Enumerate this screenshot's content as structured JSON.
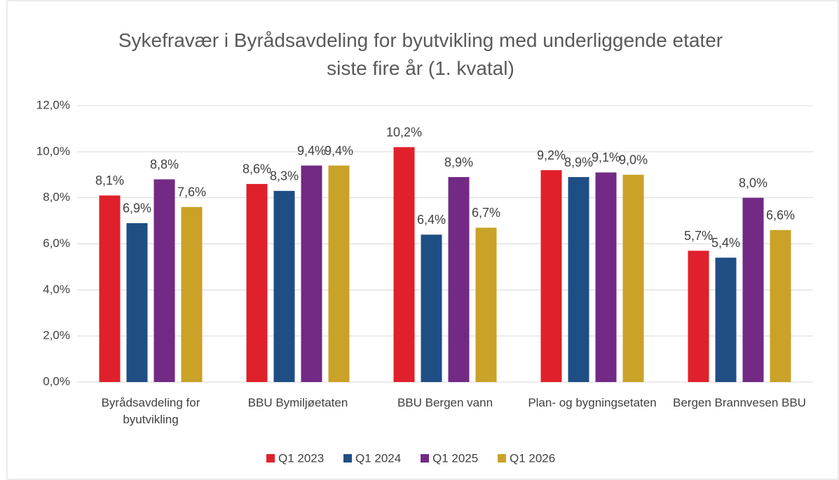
{
  "chart_data": {
    "type": "bar",
    "title": "Sykefravær i Byrådsavdeling for byutvikling med underliggende etater siste fire år (1. kvatal)",
    "categories": [
      "Byrådsavdeling for byutvikling",
      "BBU Bymiljøetaten",
      "BBU Bergen vann",
      "Plan- og bygningsetaten",
      "Bergen Brannvesen BBU"
    ],
    "series": [
      {
        "name": "Q1 2023",
        "color": "#e0202a",
        "values": [
          8.1,
          8.6,
          10.2,
          9.2,
          5.7
        ],
        "value_labels": [
          "8,1%",
          "8,6%",
          "10,2%",
          "9,2%",
          "5,7%"
        ]
      },
      {
        "name": "Q1 2024",
        "color": "#1f4e85",
        "values": [
          6.9,
          8.3,
          6.4,
          8.9,
          5.4
        ],
        "value_labels": [
          "6,9%",
          "8,3%",
          "6,4%",
          "8,9%",
          "5,4%"
        ]
      },
      {
        "name": "Q1 2025",
        "color": "#722a85",
        "values": [
          8.8,
          9.4,
          8.9,
          9.1,
          8.0
        ],
        "value_labels": [
          "8,8%",
          "9,4%",
          "8,9%",
          "9,1%",
          "8,0%"
        ]
      },
      {
        "name": "Q1 2026",
        "color": "#c9a227",
        "values": [
          7.6,
          9.4,
          6.7,
          9.0,
          6.6
        ],
        "value_labels": [
          "7,6%",
          "9,4%",
          "6,7%",
          "9,0%",
          "6,6%"
        ]
      }
    ],
    "ylim": [
      0,
      12
    ],
    "yticks": [
      {
        "value": 0,
        "label": "0,0%"
      },
      {
        "value": 2,
        "label": "2,0%"
      },
      {
        "value": 4,
        "label": "4,0%"
      },
      {
        "value": 6,
        "label": "6,0%"
      },
      {
        "value": 8,
        "label": "8,0%"
      },
      {
        "value": 10,
        "label": "10,0%"
      },
      {
        "value": 12,
        "label": "12,0%"
      }
    ],
    "grid": true,
    "legend": "bottom"
  }
}
